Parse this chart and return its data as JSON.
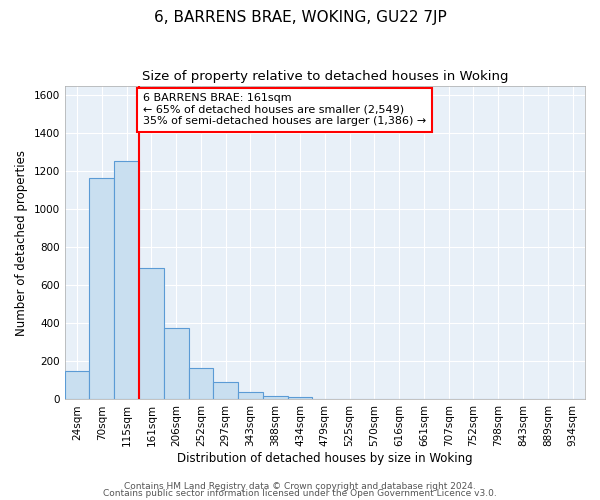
{
  "title": "6, BARRENS BRAE, WOKING, GU22 7JP",
  "subtitle": "Size of property relative to detached houses in Woking",
  "xlabel": "Distribution of detached houses by size in Woking",
  "ylabel": "Number of detached properties",
  "bar_labels": [
    "24sqm",
    "70sqm",
    "115sqm",
    "161sqm",
    "206sqm",
    "252sqm",
    "297sqm",
    "343sqm",
    "388sqm",
    "434sqm",
    "479sqm",
    "525sqm",
    "570sqm",
    "616sqm",
    "661sqm",
    "707sqm",
    "752sqm",
    "798sqm",
    "843sqm",
    "889sqm",
    "934sqm"
  ],
  "bar_values": [
    148,
    1165,
    1255,
    690,
    375,
    163,
    92,
    37,
    20,
    15,
    0,
    0,
    0,
    0,
    0,
    0,
    0,
    0,
    0,
    0,
    0
  ],
  "bar_color": "#c9dff0",
  "bar_edge_color": "#5b9bd5",
  "vline_x": 3,
  "vline_color": "red",
  "annotation_box_text": "6 BARRENS BRAE: 161sqm\n← 65% of detached houses are smaller (2,549)\n35% of semi-detached houses are larger (1,386) →",
  "annotation_box_facecolor": "white",
  "annotation_box_edgecolor": "red",
  "ylim": [
    0,
    1650
  ],
  "yticks": [
    0,
    200,
    400,
    600,
    800,
    1000,
    1200,
    1400,
    1600
  ],
  "plot_bg_color": "#e8f0f8",
  "grid_color": "#ffffff",
  "footer_line1": "Contains HM Land Registry data © Crown copyright and database right 2024.",
  "footer_line2": "Contains public sector information licensed under the Open Government Licence v3.0.",
  "title_fontsize": 11,
  "subtitle_fontsize": 9.5,
  "axis_label_fontsize": 8.5,
  "tick_fontsize": 7.5,
  "annotation_fontsize": 8,
  "footer_fontsize": 6.5
}
